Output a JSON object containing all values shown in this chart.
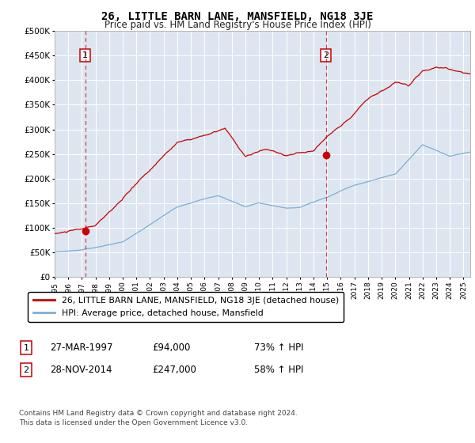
{
  "title": "26, LITTLE BARN LANE, MANSFIELD, NG18 3JE",
  "subtitle": "Price paid vs. HM Land Registry's House Price Index (HPI)",
  "ylim": [
    0,
    500000
  ],
  "yticks": [
    0,
    50000,
    100000,
    150000,
    200000,
    250000,
    300000,
    350000,
    400000,
    450000,
    500000
  ],
  "xlim_start": 1995.0,
  "xlim_end": 2025.5,
  "background_color": "#dde6f0",
  "sale1_date": 1997.24,
  "sale1_price": 94000,
  "sale2_date": 2014.91,
  "sale2_price": 247000,
  "legend_line1": "26, LITTLE BARN LANE, MANSFIELD, NG18 3JE (detached house)",
  "legend_line2": "HPI: Average price, detached house, Mansfield",
  "note1_date": "27-MAR-1997",
  "note1_price": "£94,000",
  "note1_hpi": "73% ↑ HPI",
  "note2_date": "28-NOV-2014",
  "note2_price": "£247,000",
  "note2_hpi": "58% ↑ HPI",
  "footer": "Contains HM Land Registry data © Crown copyright and database right 2024.\nThis data is licensed under the Open Government Licence v3.0.",
  "red_line_color": "#cc0000",
  "blue_line_color": "#7bafd4",
  "dot_color": "#cc0000",
  "vline_color": "#cc0000"
}
